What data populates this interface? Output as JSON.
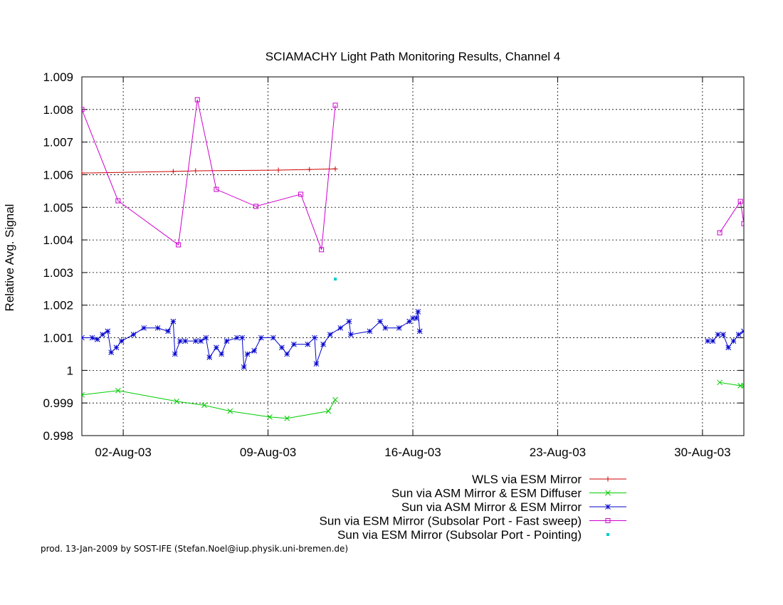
{
  "chart_data": {
    "type": "line",
    "title": "SCIAMACHY Light Path Monitoring Results, Channel 4",
    "ylabel": "Relative Avg. Signal",
    "xlabel": "",
    "xlim": [
      "2003-07-31",
      "2003-09-01"
    ],
    "ylim": [
      0.998,
      1.009
    ],
    "grid": true,
    "legend_position": "bottom-right",
    "x_ticks": [
      {
        "date": "2003-08-02",
        "label": "02-Aug-03"
      },
      {
        "date": "2003-08-09",
        "label": "09-Aug-03"
      },
      {
        "date": "2003-08-16",
        "label": "16-Aug-03"
      },
      {
        "date": "2003-08-23",
        "label": "23-Aug-03"
      },
      {
        "date": "2003-08-30",
        "label": "30-Aug-03"
      }
    ],
    "y_ticks": [
      {
        "value": 0.998,
        "label": "0.998"
      },
      {
        "value": 0.999,
        "label": "0.999"
      },
      {
        "value": 1.0,
        "label": "1"
      },
      {
        "value": 1.001,
        "label": "1.001"
      },
      {
        "value": 1.002,
        "label": "1.002"
      },
      {
        "value": 1.003,
        "label": "1.003"
      },
      {
        "value": 1.004,
        "label": "1.004"
      },
      {
        "value": 1.005,
        "label": "1.005"
      },
      {
        "value": 1.006,
        "label": "1.006"
      },
      {
        "value": 1.007,
        "label": "1.007"
      },
      {
        "value": 1.008,
        "label": "1.008"
      },
      {
        "value": 1.009,
        "label": "1.009"
      }
    ],
    "series": [
      {
        "name": "WLS via ESM Mirror",
        "color": "#cc0000",
        "marker": "plus",
        "line": true,
        "segments": [
          [
            [
              "2003-07-31 00:00",
              1.00605
            ],
            [
              "2003-08-04 10:00",
              1.0061
            ],
            [
              "2003-08-05 12:00",
              1.00612
            ],
            [
              "2003-08-09 12:00",
              1.00614
            ],
            [
              "2003-08-11 00:00",
              1.00616
            ],
            [
              "2003-08-12 06:00",
              1.00618
            ]
          ]
        ]
      },
      {
        "name": "Sun via ASM Mirror & ESM Diffuser",
        "color": "#00cc00",
        "marker": "cross",
        "line": true,
        "segments": [
          [
            [
              "2003-07-31 00:00",
              0.99925
            ],
            [
              "2003-08-01 18:00",
              0.99938
            ],
            [
              "2003-08-04 14:00",
              0.99905
            ],
            [
              "2003-08-05 22:00",
              0.99893
            ],
            [
              "2003-08-07 04:00",
              0.99875
            ],
            [
              "2003-08-09 02:00",
              0.99857
            ],
            [
              "2003-08-09 22:00",
              0.99853
            ],
            [
              "2003-08-11 22:00",
              0.99875
            ],
            [
              "2003-08-12 06:00",
              0.9991
            ]
          ],
          [
            [
              "2003-08-30 20:00",
              0.99963
            ],
            [
              "2003-08-31 20:00",
              0.99953
            ],
            [
              "2003-09-01 00:00",
              0.99953
            ]
          ]
        ]
      },
      {
        "name": "Sun via ASM Mirror & ESM Mirror",
        "color": "#0000cc",
        "marker": "star",
        "line": true,
        "segments": [
          [
            [
              "2003-07-31 00:00",
              1.001
            ],
            [
              "2003-07-31 12:00",
              1.001
            ],
            [
              "2003-07-31 18:00",
              1.00095
            ],
            [
              "2003-08-01 00:00",
              1.0011
            ],
            [
              "2003-08-01 06:00",
              1.0012
            ],
            [
              "2003-08-01 10:00",
              1.00055
            ],
            [
              "2003-08-01 16:00",
              1.0007
            ],
            [
              "2003-08-01 22:00",
              1.0009
            ],
            [
              "2003-08-02 12:00",
              1.0011
            ],
            [
              "2003-08-03 00:00",
              1.0013
            ],
            [
              "2003-08-03 16:00",
              1.0013
            ],
            [
              "2003-08-04 04:00",
              1.0012
            ],
            [
              "2003-08-04 10:00",
              1.0015
            ],
            [
              "2003-08-04 12:00",
              1.0005
            ],
            [
              "2003-08-04 18:00",
              1.0009
            ],
            [
              "2003-08-05 00:00",
              1.0009
            ],
            [
              "2003-08-05 12:00",
              1.0009
            ],
            [
              "2003-08-05 18:00",
              1.0009
            ],
            [
              "2003-08-06 00:00",
              1.001
            ],
            [
              "2003-08-06 04:00",
              1.0004
            ],
            [
              "2003-08-06 12:00",
              1.0007
            ],
            [
              "2003-08-06 18:00",
              1.0005
            ],
            [
              "2003-08-07 00:00",
              1.0009
            ],
            [
              "2003-08-07 12:00",
              1.001
            ],
            [
              "2003-08-07 18:00",
              1.001
            ],
            [
              "2003-08-07 20:00",
              1.0001
            ],
            [
              "2003-08-08 00:00",
              1.0005
            ],
            [
              "2003-08-08 08:00",
              1.0006
            ],
            [
              "2003-08-08 16:00",
              1.001
            ],
            [
              "2003-08-09 06:00",
              1.001
            ],
            [
              "2003-08-09 16:00",
              1.0007
            ],
            [
              "2003-08-09 22:00",
              1.0005
            ],
            [
              "2003-08-10 06:00",
              1.0008
            ],
            [
              "2003-08-10 22:00",
              1.0008
            ],
            [
              "2003-08-11 06:00",
              1.001
            ],
            [
              "2003-08-11 08:00",
              1.0002
            ],
            [
              "2003-08-11 16:00",
              1.0008
            ],
            [
              "2003-08-12 00:00",
              1.0011
            ],
            [
              "2003-08-12 12:00",
              1.0013
            ],
            [
              "2003-08-12 22:00",
              1.0015
            ],
            [
              "2003-08-13 00:00",
              1.0011
            ],
            [
              "2003-08-13 22:00",
              1.0012
            ],
            [
              "2003-08-14 10:00",
              1.0015
            ],
            [
              "2003-08-14 16:00",
              1.0013
            ],
            [
              "2003-08-15 08:00",
              1.0013
            ],
            [
              "2003-08-15 20:00",
              1.0015
            ],
            [
              "2003-08-16 00:00",
              1.0016
            ],
            [
              "2003-08-16 04:00",
              1.0016
            ],
            [
              "2003-08-16 06:00",
              1.0018
            ],
            [
              "2003-08-16 08:00",
              1.0012
            ]
          ],
          [
            [
              "2003-08-30 06:00",
              1.0009
            ],
            [
              "2003-08-30 12:00",
              1.0009
            ],
            [
              "2003-08-30 18:00",
              1.0011
            ],
            [
              "2003-08-31 00:00",
              1.0011
            ],
            [
              "2003-08-31 06:00",
              1.0007
            ],
            [
              "2003-08-31 12:00",
              1.0009
            ],
            [
              "2003-08-31 18:00",
              1.0011
            ],
            [
              "2003-09-01 00:00",
              1.0012
            ],
            [
              "2003-09-01 06:00",
              1.0013
            ],
            [
              "2003-09-01 10:00",
              1.0014
            ],
            [
              "2003-09-01 14:00",
              1.0007
            ],
            [
              "2003-09-01 18:00",
              1.001
            ],
            [
              "2003-09-01 22:00",
              1.001
            ],
            [
              "2003-09-02 00:00",
              1.0011
            ]
          ]
        ]
      },
      {
        "name": "Sun via ESM Mirror (Subsolar Port - Fast sweep)",
        "color": "#cc00cc",
        "marker": "square",
        "line": true,
        "segments": [
          [
            [
              "2003-07-31 00:00",
              1.008
            ],
            [
              "2003-08-01 18:00",
              1.0052
            ],
            [
              "2003-08-04 16:00",
              1.00385
            ],
            [
              "2003-08-05 14:00",
              1.0083
            ],
            [
              "2003-08-06 12:00",
              1.00555
            ],
            [
              "2003-08-08 10:00",
              1.00503
            ],
            [
              "2003-08-10 14:00",
              1.0054
            ],
            [
              "2003-08-11 14:00",
              1.0037
            ],
            [
              "2003-08-12 06:00",
              1.00813
            ]
          ],
          [
            [
              "2003-08-30 20:00",
              1.00422
            ],
            [
              "2003-08-31 20:00",
              1.00518
            ],
            [
              "2003-09-01 00:00",
              1.0045
            ]
          ]
        ]
      },
      {
        "name": "Sun via ESM Mirror (Subsolar Port - Pointing)",
        "color": "#00cccc",
        "marker": "dot",
        "line": false,
        "segments": [
          [
            [
              "2003-08-12 06:00",
              1.0028
            ]
          ]
        ]
      }
    ]
  },
  "credit": "prod. 13-Jan-2009 by SOST-IFE (Stefan.Noel@iup.physik.uni-bremen.de)"
}
